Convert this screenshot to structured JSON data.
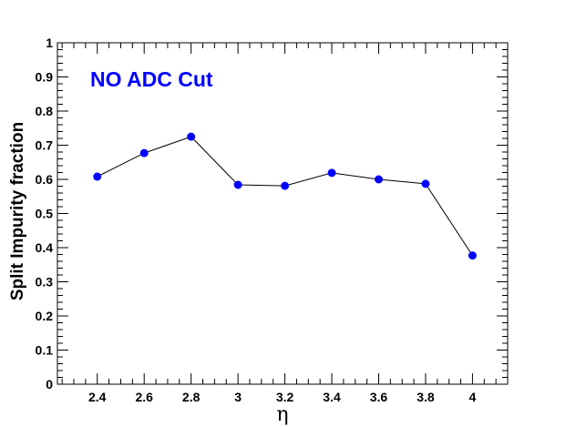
{
  "chart_data": {
    "type": "line",
    "title": "",
    "xlabel": "η",
    "ylabel": "Split Impurity fraction",
    "annotation": "NO ADC Cut",
    "xlim": [
      2.23,
      4.15
    ],
    "ylim": [
      0,
      1
    ],
    "x_ticks": [
      "2.4",
      "2.6",
      "2.8",
      "3",
      "3.2",
      "3.4",
      "3.6",
      "3.8",
      "4"
    ],
    "y_ticks": [
      "0",
      "0.1",
      "0.2",
      "0.3",
      "0.4",
      "0.5",
      "0.6",
      "0.7",
      "0.8",
      "0.9",
      "1"
    ],
    "grid": false,
    "series": [
      {
        "x": [
          2.4,
          2.6,
          2.8,
          3.0,
          3.2,
          3.4,
          3.6,
          3.8,
          4.0
        ],
        "y": [
          0.608,
          0.677,
          0.725,
          0.584,
          0.581,
          0.619,
          0.6,
          0.587,
          0.377
        ]
      }
    ]
  },
  "colors": {
    "marker": "#0000ff",
    "line": "#000000",
    "annotation": "#0000ff",
    "frame": "#000000"
  }
}
